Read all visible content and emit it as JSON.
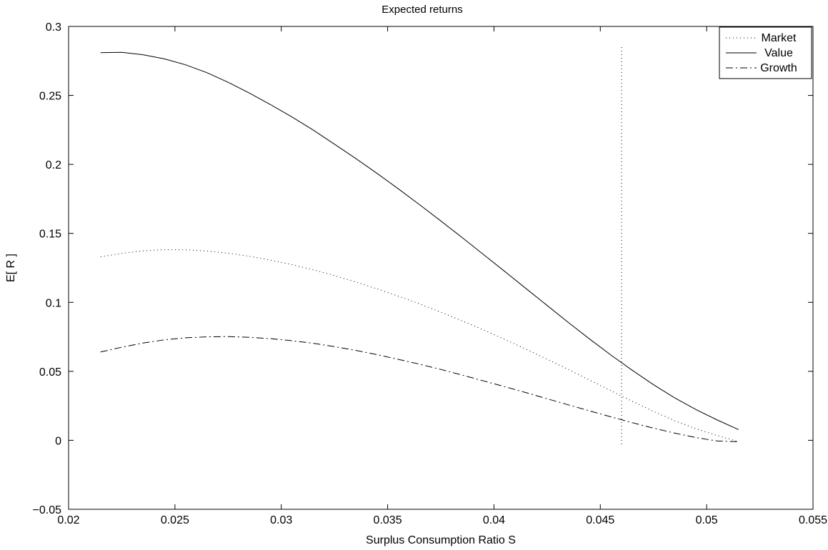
{
  "chart_data": {
    "type": "line",
    "title": "Expected returns",
    "xlabel": "Surplus Consumption Ratio S",
    "ylabel": "E[ R ]",
    "xlim": [
      0.02,
      0.055
    ],
    "ylim": [
      -0.05,
      0.3
    ],
    "xticks": [
      0.02,
      0.025,
      0.03,
      0.035,
      0.04,
      0.045,
      0.05,
      0.055
    ],
    "xtick_labels": [
      "0.02",
      "0.025",
      "0.03",
      "0.035",
      "0.04",
      "0.045",
      "0.05",
      "0.055"
    ],
    "yticks": [
      -0.05,
      0,
      0.05,
      0.1,
      0.15,
      0.2,
      0.25,
      0.3
    ],
    "ytick_labels": [
      "−0.05",
      "0",
      "0.05",
      "0.1",
      "0.15",
      "0.2",
      "0.25",
      "0.3"
    ],
    "grid": false,
    "legend_position": "top-right",
    "series": [
      {
        "name": "Market",
        "style": "dotted",
        "color": "#000000",
        "x": [
          0.0215,
          0.0225,
          0.0235,
          0.0245,
          0.0255,
          0.0265,
          0.0275,
          0.0285,
          0.0295,
          0.0305,
          0.0315,
          0.0325,
          0.0335,
          0.0345,
          0.0355,
          0.0365,
          0.0375,
          0.0385,
          0.0395,
          0.0405,
          0.0415,
          0.0425,
          0.0435,
          0.0445,
          0.0455,
          0.0465,
          0.0475,
          0.0485,
          0.0495,
          0.0505,
          0.0515
        ],
        "y": [
          0.133,
          0.1355,
          0.1373,
          0.1382,
          0.1381,
          0.1372,
          0.1356,
          0.1334,
          0.1306,
          0.1274,
          0.1236,
          0.1194,
          0.1148,
          0.1098,
          0.1045,
          0.0989,
          0.0929,
          0.0866,
          0.0801,
          0.0732,
          0.0661,
          0.0588,
          0.0513,
          0.0436,
          0.0359,
          0.0283,
          0.021,
          0.0142,
          0.0083,
          0.0035,
          -0.001
        ]
      },
      {
        "name": "Value",
        "style": "solid",
        "color": "#000000",
        "x": [
          0.0215,
          0.0225,
          0.0235,
          0.0245,
          0.0255,
          0.0265,
          0.0275,
          0.0285,
          0.0295,
          0.0305,
          0.0315,
          0.0325,
          0.0335,
          0.0345,
          0.0355,
          0.0365,
          0.0375,
          0.0385,
          0.0395,
          0.0405,
          0.0415,
          0.0425,
          0.0435,
          0.0445,
          0.0455,
          0.0465,
          0.0475,
          0.0485,
          0.0495,
          0.0505,
          0.0515
        ],
        "y": [
          0.281,
          0.2812,
          0.2795,
          0.2765,
          0.2722,
          0.2665,
          0.2595,
          0.2517,
          0.2433,
          0.2344,
          0.2249,
          0.2147,
          0.2043,
          0.1935,
          0.1823,
          0.1708,
          0.159,
          0.147,
          0.1348,
          0.1225,
          0.1101,
          0.0977,
          0.0854,
          0.0734,
          0.0618,
          0.0508,
          0.0403,
          0.0307,
          0.0223,
          0.0147,
          0.0078
        ]
      },
      {
        "name": "Growth",
        "style": "dashdot",
        "color": "#000000",
        "x": [
          0.0215,
          0.0225,
          0.0235,
          0.0245,
          0.0255,
          0.0265,
          0.0275,
          0.0285,
          0.0295,
          0.0305,
          0.0315,
          0.0325,
          0.0335,
          0.0345,
          0.0355,
          0.0365,
          0.0375,
          0.0385,
          0.0395,
          0.0405,
          0.0415,
          0.0425,
          0.0435,
          0.0445,
          0.0455,
          0.0465,
          0.0475,
          0.0485,
          0.0495,
          0.0505,
          0.0515
        ],
        "y": [
          0.064,
          0.0675,
          0.0705,
          0.0728,
          0.0743,
          0.075,
          0.0752,
          0.0747,
          0.0737,
          0.0722,
          0.0703,
          0.0679,
          0.0652,
          0.0621,
          0.0587,
          0.0552,
          0.0514,
          0.0473,
          0.0431,
          0.0389,
          0.0346,
          0.0301,
          0.0257,
          0.0213,
          0.017,
          0.0128,
          0.0088,
          0.0052,
          0.002,
          -0.0005,
          -0.001
        ]
      }
    ],
    "vertical_line": {
      "x": 0.046,
      "y_range": [
        -0.003,
        0.285
      ],
      "style": "dotted"
    }
  }
}
